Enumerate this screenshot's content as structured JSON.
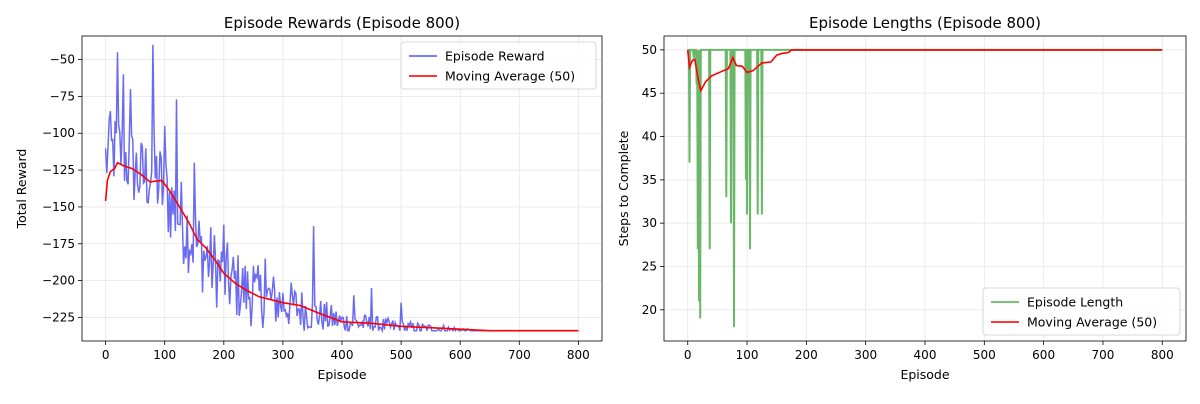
{
  "chart_data": [
    {
      "type": "line",
      "title": "Episode Rewards (Episode 800)",
      "xlabel": "Episode",
      "ylabel": "Total Reward",
      "xlim": [
        -40,
        840
      ],
      "ylim": [
        -241,
        -34
      ],
      "xticks": [
        0,
        100,
        200,
        300,
        400,
        500,
        600,
        700,
        800
      ],
      "xtick_labels": [
        "0",
        "100",
        "200",
        "300",
        "400",
        "500",
        "600",
        "700",
        "800"
      ],
      "yticks": [
        -225,
        -200,
        -175,
        -150,
        -125,
        -100,
        -75,
        -50
      ],
      "ytick_labels": [
        "−225",
        "−200",
        "−175",
        "−150",
        "−125",
        "−100",
        "−75",
        "−50"
      ],
      "grid": true,
      "legend_position": "top-right",
      "series": [
        {
          "name": "Episode Reward",
          "color": "#5b5bf0",
          "style": "noisy",
          "points": [
            [
              0,
              -118
            ],
            [
              20,
              -110
            ],
            [
              40,
              -120
            ],
            [
              60,
              -130
            ],
            [
              80,
              -126
            ],
            [
              100,
              -140
            ],
            [
              130,
              -160
            ],
            [
              160,
              -180
            ],
            [
              200,
              -198
            ],
            [
              250,
              -210
            ],
            [
              300,
              -215
            ],
            [
              350,
              -222
            ],
            [
              400,
              -228
            ],
            [
              450,
              -230
            ],
            [
              500,
              -232
            ],
            [
              550,
              -233
            ],
            [
              600,
              -234
            ],
            [
              800,
              -234
            ]
          ],
          "spread": [
            [
              0,
              25
            ],
            [
              100,
              30
            ],
            [
              200,
              26
            ],
            [
              300,
              18
            ],
            [
              400,
              8
            ],
            [
              500,
              5
            ],
            [
              600,
              3
            ],
            [
              620,
              0
            ],
            [
              800,
              0
            ]
          ],
          "spikes": [
            [
              8,
              -85
            ],
            [
              15,
              -45
            ],
            [
              20,
              -45
            ],
            [
              30,
              -60
            ],
            [
              42,
              -70
            ],
            [
              75,
              -65
            ],
            [
              80,
              -40
            ],
            [
              95,
              -80
            ],
            [
              100,
              -95
            ],
            [
              120,
              -77
            ],
            [
              150,
              -120
            ],
            [
              175,
              -130
            ],
            [
              200,
              -162
            ],
            [
              215,
              -155
            ],
            [
              250,
              -190
            ],
            [
              270,
              -185
            ],
            [
              305,
              -190
            ],
            [
              352,
              -163
            ],
            [
              420,
              -210
            ],
            [
              450,
              -205
            ],
            [
              500,
              -215
            ]
          ]
        },
        {
          "name": "Moving Average (50)",
          "color": "#ff0000",
          "style": "smooth",
          "points": [
            [
              0,
              -146
            ],
            [
              3,
              -132
            ],
            [
              8,
              -126
            ],
            [
              15,
              -124
            ],
            [
              20,
              -120
            ],
            [
              30,
              -122
            ],
            [
              45,
              -124
            ],
            [
              60,
              -128
            ],
            [
              75,
              -133
            ],
            [
              95,
              -132
            ],
            [
              110,
              -140
            ],
            [
              125,
              -150
            ],
            [
              140,
              -160
            ],
            [
              155,
              -172
            ],
            [
              170,
              -178
            ],
            [
              185,
              -186
            ],
            [
              200,
              -195
            ],
            [
              220,
              -202
            ],
            [
              240,
              -207
            ],
            [
              260,
              -211
            ],
            [
              280,
              -213
            ],
            [
              300,
              -215
            ],
            [
              330,
              -217
            ],
            [
              360,
              -222
            ],
            [
              400,
              -228
            ],
            [
              450,
              -229
            ],
            [
              500,
              -231
            ],
            [
              550,
              -232
            ],
            [
              600,
              -233
            ],
            [
              650,
              -234
            ],
            [
              800,
              -234
            ]
          ]
        }
      ]
    },
    {
      "type": "line",
      "title": "Episode Lengths (Episode 800)",
      "xlabel": "Episode",
      "ylabel": "Steps to Complete",
      "xlim": [
        -40,
        840
      ],
      "ylim": [
        16.4,
        51.6
      ],
      "xticks": [
        0,
        100,
        200,
        300,
        400,
        500,
        600,
        700,
        800
      ],
      "xtick_labels": [
        "0",
        "100",
        "200",
        "300",
        "400",
        "500",
        "600",
        "700",
        "800"
      ],
      "yticks": [
        20,
        25,
        30,
        35,
        40,
        45,
        50
      ],
      "ytick_labels": [
        "20",
        "25",
        "30",
        "35",
        "40",
        "45",
        "50"
      ],
      "grid": true,
      "legend_position": "bottom-right",
      "series": [
        {
          "name": "Episode Length",
          "color": "#5aaf5a",
          "style": "dips",
          "baseline": 50,
          "dips": [
            [
              3,
              37
            ],
            [
              10,
              49
            ],
            [
              15,
              46
            ],
            [
              17,
              27
            ],
            [
              19,
              21
            ],
            [
              21,
              19
            ],
            [
              37,
              27
            ],
            [
              65,
              33
            ],
            [
              73,
              30
            ],
            [
              78,
              18
            ],
            [
              98,
              35
            ],
            [
              100,
              31
            ],
            [
              105,
              27
            ],
            [
              118,
              31
            ],
            [
              125,
              31
            ]
          ]
        },
        {
          "name": "Moving Average (50)",
          "color": "#ff0000",
          "style": "smooth",
          "points": [
            [
              0,
              50
            ],
            [
              3,
              48
            ],
            [
              8,
              48.8
            ],
            [
              12,
              48.9
            ],
            [
              18,
              46.5
            ],
            [
              22,
              45.3
            ],
            [
              30,
              46.3
            ],
            [
              40,
              47
            ],
            [
              50,
              47.3
            ],
            [
              60,
              47.6
            ],
            [
              68,
              47.8
            ],
            [
              72,
              48.4
            ],
            [
              76,
              49.1
            ],
            [
              82,
              48.2
            ],
            [
              92,
              48.1
            ],
            [
              100,
              47.4
            ],
            [
              110,
              47.6
            ],
            [
              125,
              48.5
            ],
            [
              140,
              48.6
            ],
            [
              150,
              49.4
            ],
            [
              160,
              49.6
            ],
            [
              170,
              49.7
            ],
            [
              175,
              50
            ],
            [
              800,
              50
            ]
          ]
        }
      ]
    }
  ]
}
